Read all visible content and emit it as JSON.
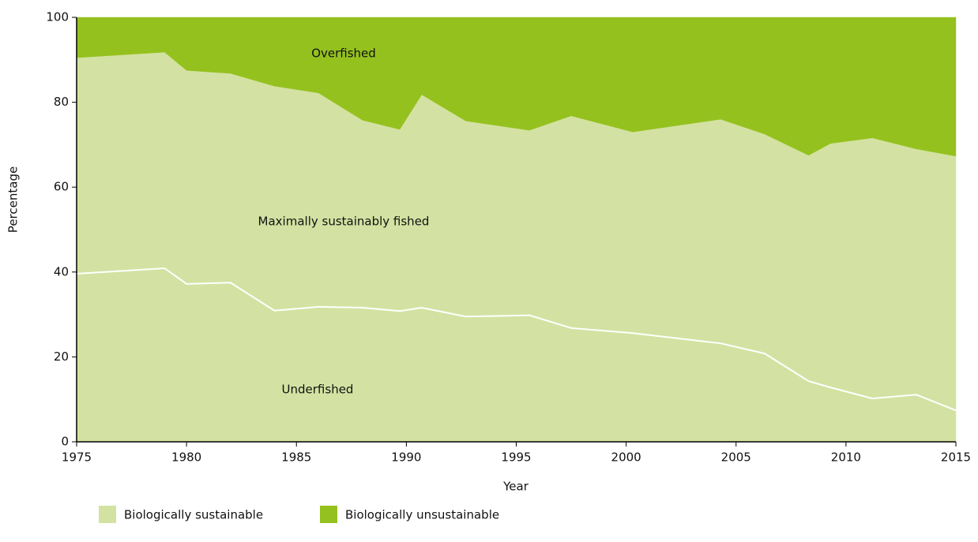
{
  "chart_data": {
    "type": "stacked_area",
    "x_label": "Year",
    "y_label": "Percentage",
    "x": [
      1975,
      1979,
      1980,
      1982,
      1984,
      1986,
      1988,
      1989.7,
      1990.7,
      1992.7,
      1995.6,
      1997.5,
      2000.3,
      2004.3,
      2006.3,
      2008.3,
      2009.3,
      2011.2,
      2013.2,
      2015
    ],
    "series": [
      {
        "name": "Underfished",
        "color": "#d3e2a2",
        "values": [
          39.6,
          40.9,
          37.2,
          37.5,
          30.9,
          31.8,
          31.6,
          30.8,
          31.6,
          29.5,
          29.8,
          26.8,
          25.6,
          23.2,
          20.8,
          14.3,
          12.8,
          10.2,
          11.1,
          7.4
        ]
      },
      {
        "name": "Maximally sustainably fished",
        "color": "#d3e2a2",
        "values": [
          50.9,
          50.9,
          50.3,
          49.3,
          52.9,
          50.4,
          44.2,
          42.8,
          50.2,
          46.1,
          43.6,
          50.0,
          47.4,
          52.8,
          51.7,
          53.2,
          57.5,
          61.4,
          57.9,
          59.9
        ]
      },
      {
        "name": "Overfished",
        "color": "#95c11f",
        "values": [
          9.5,
          8.2,
          12.5,
          13.2,
          16.2,
          17.8,
          24.2,
          26.4,
          18.2,
          24.4,
          26.6,
          23.2,
          27.0,
          24.0,
          27.5,
          32.5,
          29.7,
          28.4,
          31.0,
          32.7
        ]
      }
    ],
    "boundary_color": "#ffffff",
    "legend": [
      {
        "name": "Biologically sustainable",
        "color": "#d3e2a2"
      },
      {
        "name": "Biologically unsustainable",
        "color": "#95c11f"
      }
    ],
    "xlim": [
      1975,
      2015
    ],
    "xticks": [
      1975,
      1980,
      1985,
      1990,
      1995,
      2000,
      2005,
      2010,
      2015
    ],
    "ylim": [
      0,
      100
    ],
    "yticks": [
      0,
      20,
      40,
      60,
      80,
      100
    ]
  }
}
